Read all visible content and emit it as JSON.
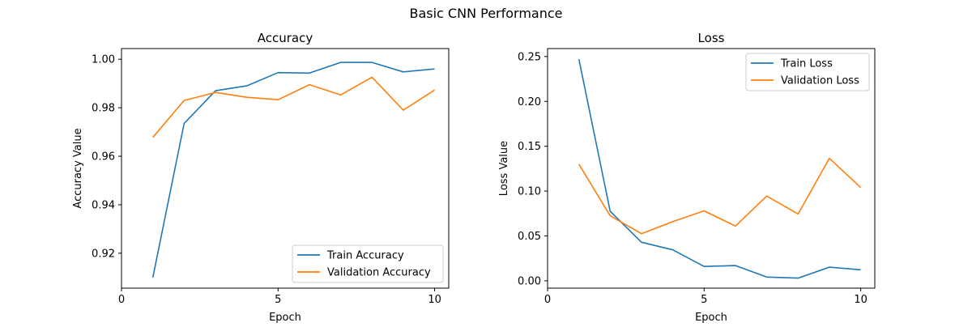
{
  "figure_title": "Basic CNN Performance",
  "colors": {
    "train": "#1f77b4",
    "validation": "#ff7f0e"
  },
  "chart_data": [
    {
      "type": "line",
      "title": "Accuracy",
      "xlabel": "Epoch",
      "ylabel": "Accuracy Value",
      "xlim": [
        0,
        10.45
      ],
      "ylim": [
        0.9056,
        1.0044
      ],
      "xticks": [
        0,
        5,
        10
      ],
      "yticks": [
        0.92,
        0.94,
        0.96,
        0.98,
        1.0
      ],
      "ytick_labels": [
        "0.92",
        "0.94",
        "0.96",
        "0.98",
        "1.00"
      ],
      "grid": false,
      "legend": "lower-right",
      "x": [
        1,
        2,
        3,
        4,
        5,
        6,
        7,
        8,
        9,
        10
      ],
      "series": [
        {
          "name": "Train Accuracy",
          "values": [
            0.91,
            0.9735,
            0.987,
            0.989,
            0.9945,
            0.9943,
            0.9987,
            0.9987,
            0.9948,
            0.996
          ]
        },
        {
          "name": "Validation Accuracy",
          "values": [
            0.9678,
            0.983,
            0.9863,
            0.9843,
            0.9833,
            0.9895,
            0.9853,
            0.9926,
            0.979,
            0.9873
          ]
        }
      ]
    },
    {
      "type": "line",
      "title": "Loss",
      "xlabel": "Epoch",
      "ylabel": "Loss Value",
      "xlim": [
        0,
        10.45
      ],
      "ylim": [
        -0.0082,
        0.2589
      ],
      "xticks": [
        0,
        5,
        10
      ],
      "yticks": [
        0.0,
        0.05,
        0.1,
        0.15,
        0.2,
        0.25
      ],
      "ytick_labels": [
        "0.00",
        "0.05",
        "0.10",
        "0.15",
        "0.20",
        "0.25"
      ],
      "grid": false,
      "legend": "upper-right",
      "x": [
        1,
        2,
        3,
        4,
        5,
        6,
        7,
        8,
        9,
        10
      ],
      "series": [
        {
          "name": "Train Loss",
          "values": [
            0.247,
            0.0775,
            0.043,
            0.0345,
            0.016,
            0.017,
            0.0042,
            0.003,
            0.0152,
            0.0123
          ]
        },
        {
          "name": "Validation Loss",
          "values": [
            0.13,
            0.0725,
            0.0525,
            0.066,
            0.078,
            0.061,
            0.0945,
            0.0745,
            0.1365,
            0.104
          ]
        }
      ]
    }
  ]
}
